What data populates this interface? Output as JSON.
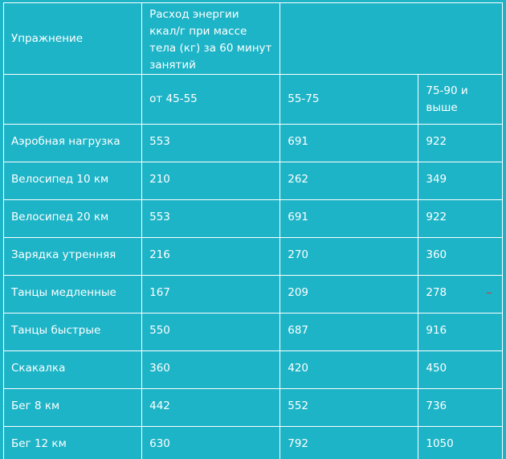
{
  "table": {
    "header": {
      "exercise": "Упражнение",
      "energy_title": "Расход энергии ккал/г при массе тела (кг) за 60 минут занятий",
      "weights": [
        "от 45-55",
        "55-75",
        "75-90 и выше"
      ]
    },
    "rows": [
      {
        "name": "Аэробная нагрузка",
        "values": [
          "553",
          "691",
          "922"
        ]
      },
      {
        "name": "Велосипед 10 км",
        "values": [
          "210",
          "262",
          "349"
        ]
      },
      {
        "name": "Велосипед 20 км",
        "values": [
          "553",
          "691",
          "922"
        ]
      },
      {
        "name": "Зарядка утренняя",
        "values": [
          "216",
          "270",
          "360"
        ]
      },
      {
        "name": "Танцы медленные",
        "values": [
          "167",
          "209",
          "278"
        ]
      },
      {
        "name": "Танцы быстрые",
        "values": [
          "550",
          "687",
          "916"
        ]
      },
      {
        "name": "Скакалка",
        "values": [
          "360",
          "420",
          "450"
        ]
      },
      {
        "name": "Бег 8 км",
        "values": [
          "442",
          "552",
          "736"
        ]
      },
      {
        "name": "Бег 12 км",
        "values": [
          "630",
          "792",
          "1050"
        ]
      }
    ]
  },
  "colors": {
    "background": "#1db4c7",
    "grid": "#ffffff",
    "text": "#ffffff"
  }
}
